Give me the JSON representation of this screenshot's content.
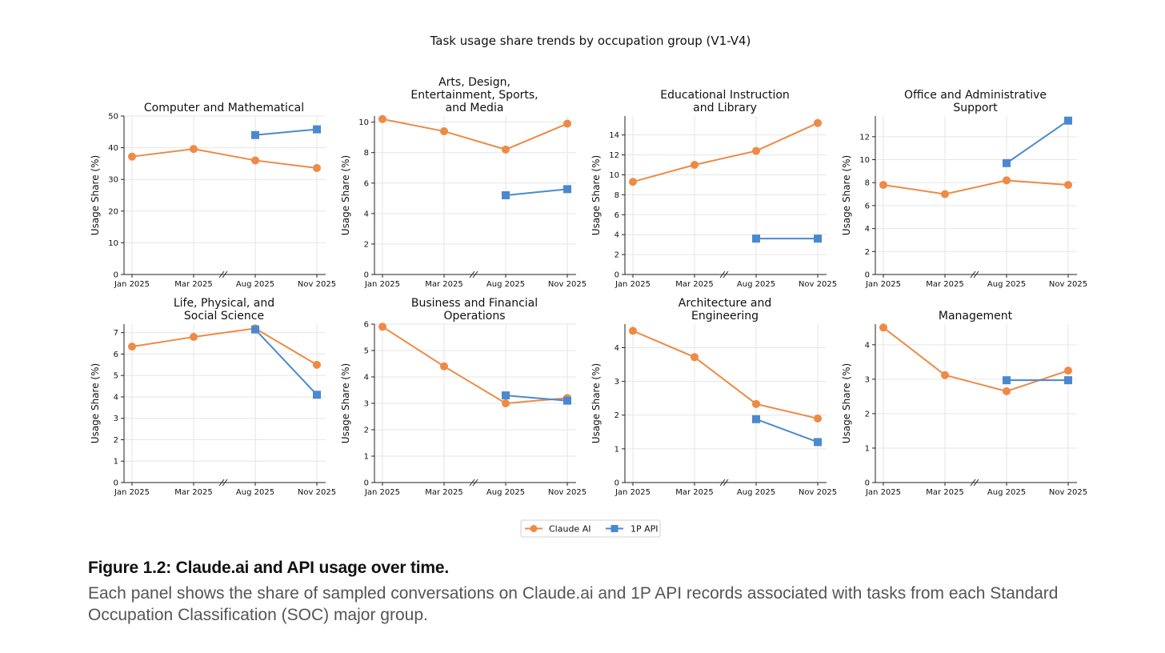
{
  "figure_title": "Task usage share trends by occupation group (V1-V4)",
  "legend": {
    "items": [
      {
        "label": "Claude AI",
        "color": "#ee8a45",
        "marker": "circle"
      },
      {
        "label": "1P API",
        "color": "#4a89d0",
        "marker": "square"
      }
    ]
  },
  "caption": {
    "title": "Figure 1.2: Claude.ai and API usage over time.",
    "text": "Each panel shows the share of sampled conversations on Claude.ai and 1P API records associated with tasks from each Standard Occupation Classification (SOC) major group."
  },
  "chart_data": [
    {
      "type": "line",
      "title": "Computer and Mathematical",
      "ylabel": "Usage Share (%)",
      "categories": [
        "Jan 2025",
        "Mar 2025",
        "Aug 2025",
        "Nov 2025"
      ],
      "axis_break": "between Mar 2025 and Aug 2025",
      "ylim": [
        0,
        50
      ],
      "yticks": [
        0,
        10,
        20,
        30,
        40,
        50
      ],
      "grid": true,
      "series": [
        {
          "name": "Claude AI",
          "values": [
            37.2,
            39.6,
            36.0,
            33.6
          ]
        },
        {
          "name": "1P API",
          "values": [
            null,
            null,
            44.0,
            45.8
          ]
        }
      ]
    },
    {
      "type": "line",
      "title": "Arts, Design, Entertainment, Sports, and Media",
      "ylabel": "Usage Share (%)",
      "categories": [
        "Jan 2025",
        "Mar 2025",
        "Aug 2025",
        "Nov 2025"
      ],
      "axis_break": "between Mar 2025 and Aug 2025",
      "ylim": [
        0,
        10.4
      ],
      "yticks": [
        0,
        2,
        4,
        6,
        8,
        10
      ],
      "grid": true,
      "series": [
        {
          "name": "Claude AI",
          "values": [
            10.2,
            9.4,
            8.2,
            9.9
          ]
        },
        {
          "name": "1P API",
          "values": [
            null,
            null,
            5.2,
            5.6
          ]
        }
      ]
    },
    {
      "type": "line",
      "title": "Educational Instruction and Library",
      "ylabel": "Usage Share (%)",
      "categories": [
        "Jan 2025",
        "Mar 2025",
        "Aug 2025",
        "Nov 2025"
      ],
      "axis_break": "between Mar 2025 and Aug 2025",
      "ylim": [
        0,
        15.9
      ],
      "yticks": [
        0,
        2,
        4,
        6,
        8,
        10,
        12,
        14
      ],
      "grid": true,
      "series": [
        {
          "name": "Claude AI",
          "values": [
            9.3,
            11.0,
            12.4,
            15.2
          ]
        },
        {
          "name": "1P API",
          "values": [
            null,
            null,
            3.6,
            3.6
          ]
        }
      ]
    },
    {
      "type": "line",
      "title": "Office and Administrative Support",
      "ylabel": "Usage Share (%)",
      "categories": [
        "Jan 2025",
        "Mar 2025",
        "Aug 2025",
        "Nov 2025"
      ],
      "axis_break": "between Mar 2025 and Aug 2025",
      "ylim": [
        0,
        13.8
      ],
      "yticks": [
        0,
        2,
        4,
        6,
        8,
        10,
        12
      ],
      "grid": true,
      "series": [
        {
          "name": "Claude AI",
          "values": [
            7.8,
            7.0,
            8.2,
            7.8
          ]
        },
        {
          "name": "1P API",
          "values": [
            null,
            null,
            9.7,
            13.4
          ]
        }
      ]
    },
    {
      "type": "line",
      "title": "Life, Physical, and Social Science",
      "ylabel": "Usage Share (%)",
      "categories": [
        "Jan 2025",
        "Mar 2025",
        "Aug 2025",
        "Nov 2025"
      ],
      "axis_break": "between Mar 2025 and Aug 2025",
      "ylim": [
        0,
        7.4
      ],
      "yticks": [
        0,
        1,
        2,
        3,
        4,
        5,
        6,
        7
      ],
      "grid": true,
      "series": [
        {
          "name": "Claude AI",
          "values": [
            6.35,
            6.8,
            7.2,
            5.5
          ]
        },
        {
          "name": "1P API",
          "values": [
            null,
            null,
            7.15,
            4.1
          ]
        }
      ]
    },
    {
      "type": "line",
      "title": "Business and Financial Operations",
      "ylabel": "Usage Share (%)",
      "categories": [
        "Jan 2025",
        "Mar 2025",
        "Aug 2025",
        "Nov 2025"
      ],
      "axis_break": "between Mar 2025 and Aug 2025",
      "ylim": [
        0,
        6.0
      ],
      "yticks": [
        0,
        1,
        2,
        3,
        4,
        5,
        6
      ],
      "grid": true,
      "series": [
        {
          "name": "Claude AI",
          "values": [
            5.9,
            4.4,
            3.0,
            3.2
          ]
        },
        {
          "name": "1P API",
          "values": [
            null,
            null,
            3.3,
            3.1
          ]
        }
      ]
    },
    {
      "type": "line",
      "title": "Architecture and Engineering",
      "ylabel": "Usage Share (%)",
      "categories": [
        "Jan 2025",
        "Mar 2025",
        "Aug 2025",
        "Nov 2025"
      ],
      "axis_break": "between Mar 2025 and Aug 2025",
      "ylim": [
        0,
        4.7
      ],
      "yticks": [
        0,
        1,
        2,
        3,
        4
      ],
      "grid": true,
      "series": [
        {
          "name": "Claude AI",
          "values": [
            4.5,
            3.72,
            2.33,
            1.9
          ]
        },
        {
          "name": "1P API",
          "values": [
            null,
            null,
            1.88,
            1.2
          ]
        }
      ]
    },
    {
      "type": "line",
      "title": "Management",
      "ylabel": "Usage Share (%)",
      "categories": [
        "Jan 2025",
        "Mar 2025",
        "Aug 2025",
        "Nov 2025"
      ],
      "axis_break": "between Mar 2025 and Aug 2025",
      "ylim": [
        0,
        4.6
      ],
      "yticks": [
        0,
        1,
        2,
        3,
        4
      ],
      "grid": true,
      "series": [
        {
          "name": "Claude AI",
          "values": [
            4.5,
            3.12,
            2.65,
            3.25
          ]
        },
        {
          "name": "1P API",
          "values": [
            null,
            null,
            2.97,
            2.97
          ]
        }
      ]
    }
  ]
}
